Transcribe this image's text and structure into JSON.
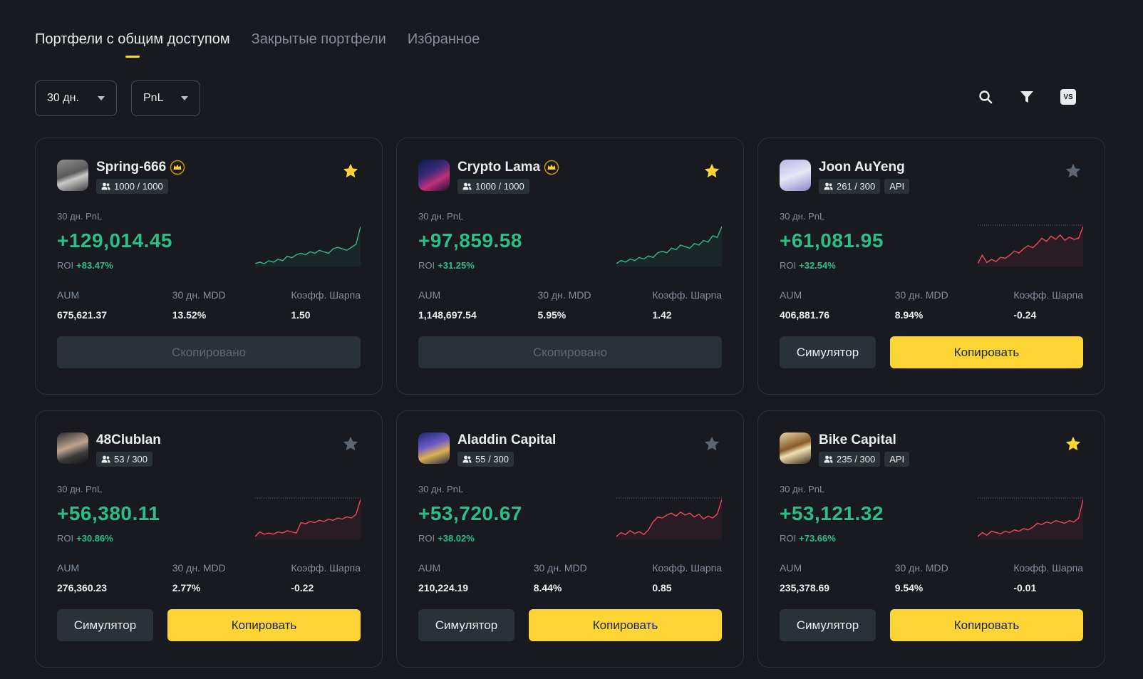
{
  "tabs": [
    "Портфели с общим доступом",
    "Закрытые портфели",
    "Избранное"
  ],
  "filters": {
    "period": "30 дн.",
    "metric": "PnL"
  },
  "tools": {
    "compare_label": "VS"
  },
  "labels": {
    "pnl": "30 дн. PnL",
    "roi": "ROI",
    "aum": "AUM",
    "mdd": "30 дн. MDD",
    "sharpe": "Коэфф. Шарпа",
    "copied": "Скопировано",
    "simulator": "Симулятор",
    "copy": "Копировать"
  },
  "colors": {
    "positive": "#2ebd85",
    "negative": "#f6465d",
    "accent": "#fcd535",
    "bg": "#181a20"
  },
  "cards": [
    {
      "name": "Spring-666",
      "crown": true,
      "followers": "1000 / 1000",
      "api": "",
      "favorite": true,
      "pnl": "+129,014.45",
      "roi": "+83.47%",
      "aum": "675,621.37",
      "mdd": "13.52%",
      "sharpe": "1.50",
      "copied": true,
      "trend_color": "green",
      "trend": [
        20,
        21,
        20,
        22,
        21,
        23,
        22,
        25,
        24,
        26,
        27,
        26,
        28,
        27,
        29,
        28,
        27,
        30,
        31,
        30,
        29,
        31,
        33,
        45
      ]
    },
    {
      "name": "Crypto Lama",
      "crown": true,
      "followers": "1000 / 1000",
      "api": "",
      "favorite": true,
      "pnl": "+97,859.58",
      "roi": "+31.25%",
      "aum": "1,148,697.54",
      "mdd": "5.95%",
      "sharpe": "1.42",
      "copied": true,
      "trend_color": "green",
      "trend": [
        24,
        26,
        25,
        27,
        26,
        28,
        27,
        29,
        28,
        31,
        32,
        31,
        34,
        33,
        36,
        35,
        34,
        37,
        36,
        39,
        38,
        42,
        41,
        48
      ]
    },
    {
      "name": "Joon AuYeng",
      "crown": false,
      "followers": "261 / 300",
      "api": "API",
      "favorite": false,
      "pnl": "+61,081.95",
      "roi": "+32.54%",
      "aum": "406,881.76",
      "mdd": "8.94%",
      "sharpe": "-0.24",
      "copied": false,
      "trend_color": "red",
      "trend": [
        14,
        22,
        15,
        18,
        16,
        20,
        19,
        22,
        26,
        24,
        28,
        31,
        29,
        33,
        38,
        35,
        40,
        37,
        41,
        36,
        39,
        37,
        38,
        49
      ]
    },
    {
      "name": "48ClubIan",
      "crown": false,
      "followers": "53 / 300",
      "api": "",
      "favorite": false,
      "pnl": "+56,380.11",
      "roi": "+30.86%",
      "aum": "276,360.23",
      "mdd": "2.77%",
      "sharpe": "-0.22",
      "copied": false,
      "trend_color": "red",
      "trend": [
        12,
        16,
        14,
        15,
        14,
        16,
        15,
        17,
        16,
        15,
        24,
        23,
        25,
        24,
        26,
        25,
        27,
        26,
        28,
        27,
        29,
        28,
        31,
        44
      ]
    },
    {
      "name": "Aladdin Capital",
      "crown": false,
      "followers": "55 / 300",
      "api": "",
      "favorite": false,
      "pnl": "+53,720.67",
      "roi": "+38.02%",
      "aum": "210,224.19",
      "mdd": "8.44%",
      "sharpe": "0.85",
      "copied": false,
      "trend_color": "red",
      "trend": [
        10,
        14,
        12,
        16,
        13,
        15,
        12,
        17,
        25,
        30,
        29,
        32,
        34,
        31,
        35,
        32,
        34,
        30,
        33,
        28,
        31,
        29,
        33,
        48
      ]
    },
    {
      "name": "Bike Capital",
      "crown": false,
      "followers": "235 / 300",
      "api": "API",
      "favorite": true,
      "pnl": "+53,121.32",
      "roi": "+73.66%",
      "aum": "235,378.69",
      "mdd": "9.54%",
      "sharpe": "-0.01",
      "copied": false,
      "trend_color": "red",
      "trend": [
        12,
        15,
        13,
        16,
        15,
        14,
        16,
        15,
        17,
        16,
        18,
        17,
        19,
        22,
        21,
        23,
        22,
        24,
        23,
        22,
        24,
        23,
        26,
        40
      ]
    }
  ]
}
